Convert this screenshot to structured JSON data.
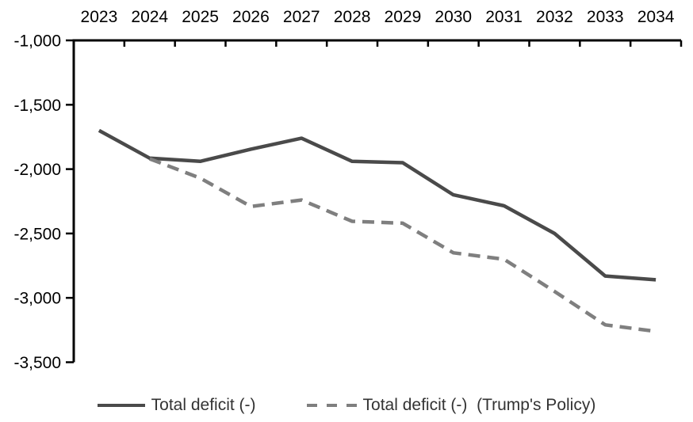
{
  "chart_data": {
    "type": "line",
    "x": [
      "2023",
      "2024",
      "2025",
      "2026",
      "2027",
      "2028",
      "2029",
      "2030",
      "2031",
      "2032",
      "2033",
      "2034"
    ],
    "series": [
      {
        "name": "Total deficit (-)",
        "line_style": "solid",
        "color": "#4a4a4a",
        "values": [
          -1700,
          -1915,
          -1940,
          -1845,
          -1760,
          -1940,
          -1950,
          -2200,
          -2285,
          -2500,
          -2830,
          -2860
        ]
      },
      {
        "name": "Total deficit (-)  (Trump's Policy)",
        "line_style": "dashed",
        "color": "#7f7f7f",
        "values": [
          null,
          -1920,
          -2070,
          -2290,
          -2240,
          -2405,
          -2420,
          -2650,
          -2700,
          -2950,
          -3210,
          -3260
        ]
      }
    ],
    "ylim": [
      -3500,
      -1000
    ],
    "ytick_step": 500,
    "yticklabels": [
      "-1,000",
      "-1,500",
      "-2,000",
      "-2,500",
      "-3,000",
      "-3,500"
    ],
    "x_axis_position": "top",
    "legend_position": "bottom",
    "grid": false,
    "axis_color": "#000000"
  }
}
